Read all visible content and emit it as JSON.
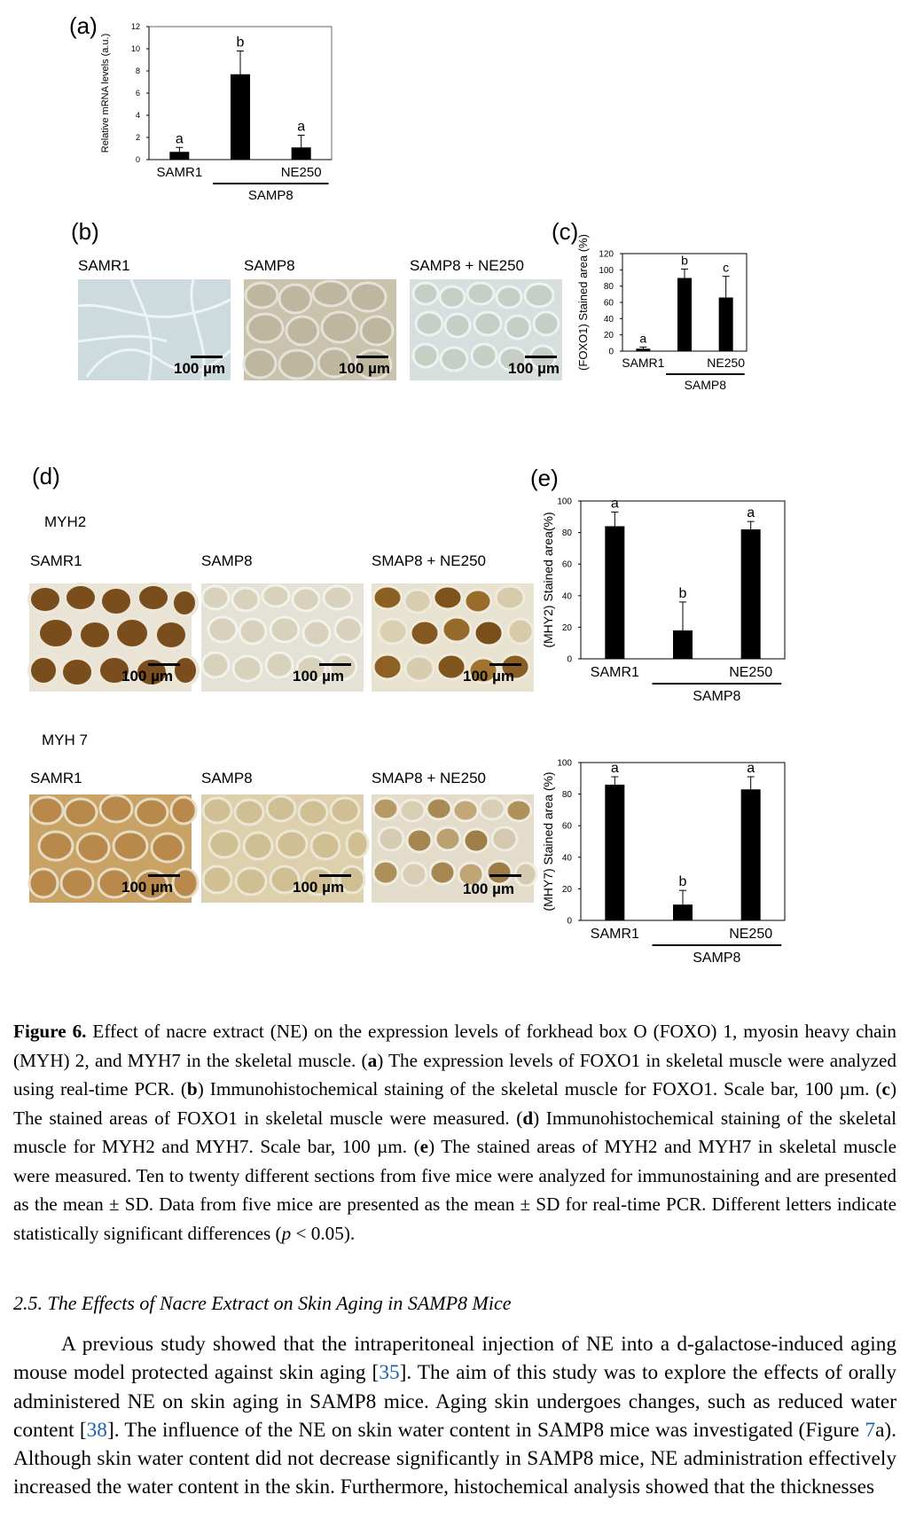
{
  "colors": {
    "bar": "#000000",
    "link": "#1a5fb4",
    "fiber_pale": "#dfe6e8",
    "fiber_brown": "#8a5a1c"
  },
  "panels": {
    "a": "(a)",
    "b": "(b)",
    "c": "(c)",
    "d": "(d)",
    "e": "(e)"
  },
  "micrographs": {
    "b_labels": [
      "SAMR1",
      "SAMP8",
      "SAMP8 + NE250"
    ],
    "d_myh2_title": "MYH2",
    "d_myh7_title": "MYH 7",
    "d_labels": [
      "SAMR1",
      "SAMP8",
      "SMAP8 + NE250"
    ],
    "scale_bar": "100 µm"
  },
  "chart_data": [
    {
      "id": "a",
      "type": "bar",
      "categories": [
        "SAMR1",
        "SAMP8",
        "NE250"
      ],
      "values": [
        0.7,
        7.7,
        1.1
      ],
      "errors": [
        0.4,
        2.1,
        1.1
      ],
      "letters": [
        "a",
        "b",
        "a"
      ],
      "xtick_labels": [
        "SAMR1",
        "",
        "NE250"
      ],
      "group_label": "SAMP8",
      "ylabel": "Relative mRNA levels (a.u.)",
      "yticks": [
        0,
        2,
        4,
        6,
        8,
        10,
        12
      ],
      "ylim": [
        0,
        12
      ]
    },
    {
      "id": "c",
      "type": "bar",
      "categories": [
        "SAMR1",
        "SAMP8",
        "NE250"
      ],
      "values": [
        3,
        90,
        66
      ],
      "errors": [
        2,
        11,
        26
      ],
      "letters": [
        "a",
        "b",
        "c"
      ],
      "xtick_labels": [
        "SAMR1",
        "",
        "NE250"
      ],
      "group_label": "SAMP8",
      "ylabel": "(FOXO1) Stained area (%)",
      "yticks": [
        0,
        20,
        40,
        60,
        80,
        100,
        120
      ],
      "ylim": [
        0,
        120
      ]
    },
    {
      "id": "e1",
      "type": "bar",
      "categories": [
        "SAMR1",
        "SAMP8",
        "NE250"
      ],
      "values": [
        84,
        18,
        82
      ],
      "errors": [
        9,
        18,
        5
      ],
      "letters": [
        "a",
        "b",
        "a"
      ],
      "xtick_labels": [
        "SAMR1",
        "",
        "NE250"
      ],
      "group_label": "SAMP8",
      "ylabel": "(MHY2) Stained area(%)",
      "yticks": [
        0,
        20,
        40,
        60,
        80,
        100
      ],
      "ylim": [
        0,
        100
      ]
    },
    {
      "id": "e2",
      "type": "bar",
      "categories": [
        "SAMR1",
        "SAMP8",
        "NE250"
      ],
      "values": [
        86,
        10,
        83
      ],
      "errors": [
        5,
        9,
        8
      ],
      "letters": [
        "a",
        "b",
        "a"
      ],
      "xtick_labels": [
        "SAMR1",
        "",
        "NE250"
      ],
      "group_label": "SAMP8",
      "ylabel": "(MHY7) Stained area (%)",
      "yticks": [
        0,
        20,
        40,
        60,
        80,
        100
      ],
      "ylim": [
        0,
        100
      ]
    }
  ],
  "caption": {
    "label": "Figure 6.",
    "intro": " Effect of nacre extract (NE) on the expression levels of forkhead box O (FOXO) 1, myosin heavy chain (MYH) 2, and MYH7 in the skeletal muscle. (",
    "a_letter": "a",
    "a_text": ") The expression levels of FOXO1 in skeletal muscle were analyzed using real-time PCR. (",
    "b_letter": "b",
    "b_text": ") Immunohistochemical staining of the skeletal muscle for FOXO1. Scale bar, 100 µm. (",
    "c_letter": "c",
    "c_text": ") The stained areas of FOXO1 in skeletal muscle were measured. (",
    "d_letter": "d",
    "d_text": ") Immunohistochemical staining of the skeletal muscle for MYH2 and MYH7. Scale bar, 100 µm. (",
    "e_letter": "e",
    "e_text": ") The stained areas of MYH2 and MYH7 in skeletal muscle were measured. Ten to twenty different sections from five mice were analyzed for immunostaining and are presented as the mean ± SD. Data from five mice are presented as the mean ± SD for real-time PCR. Different letters indicate statistically significant differences (",
    "p_letter": "p",
    "end_text": " < 0.05)."
  },
  "section": {
    "heading": "2.5. The Effects of Nacre Extract on Skin Aging in SAMP8 Mice",
    "p1": "A previous study showed that the intraperitoneal injection of NE into a d-galactose-induced aging mouse model protected against skin aging [",
    "ref1": "35",
    "p2": "]. The aim of this study was to explore the effects of orally administered NE on skin aging in SAMP8 mice. Aging skin undergoes changes, such as reduced water content [",
    "ref2": "38",
    "p3": "]. The influence of the NE on skin water content in SAMP8 mice was investigated (Figure ",
    "ref3": "7",
    "p4": "a). Although skin water content did not decrease significantly in SAMP8 mice, NE administration effectively increased the water content in the skin. Furthermore, histochemical analysis showed that the thicknesses"
  }
}
